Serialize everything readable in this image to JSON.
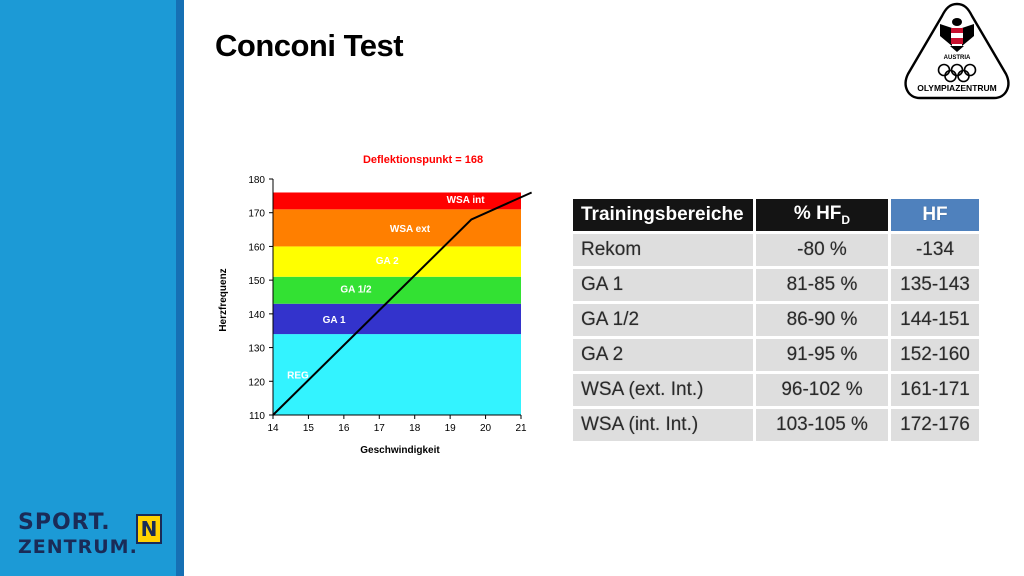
{
  "slide": {
    "title": "Conconi Test"
  },
  "logo": {
    "name": "OLYMPIAZENTRUM",
    "subtext": "AUSTRIA"
  },
  "brand": {
    "line1": "SPORT.",
    "line2": "ZENTRUM.",
    "badge": "N"
  },
  "colors": {
    "sidebar": "#1c9ad6",
    "sidebar_edge": "#1670b4",
    "brand_text": "#1a2b57",
    "table_hf_header": "#4f81bd",
    "table_header": "#141414",
    "table_cell": "#dedede"
  },
  "chart_data": {
    "type": "line",
    "title": "Deflektionspunkt = 168",
    "xlabel": "Geschwindigkeit",
    "ylabel": "Herzfrequenz",
    "xlim": [
      14,
      21
    ],
    "ylim": [
      110,
      180
    ],
    "xticks": [
      "14",
      "15",
      "16",
      "17",
      "18",
      "19",
      "20",
      "21"
    ],
    "yticks": [
      "110",
      "120",
      "130",
      "140",
      "150",
      "160",
      "170",
      "180"
    ],
    "zones": [
      {
        "label": "REG",
        "from": 110,
        "to": 134,
        "color": "#33f3ff"
      },
      {
        "label": "GA 1",
        "from": 134,
        "to": 143,
        "color": "#3333cc"
      },
      {
        "label": "GA 1/2",
        "from": 143,
        "to": 151,
        "color": "#33e133"
      },
      {
        "label": "GA 2",
        "from": 151,
        "to": 160,
        "color": "#ffff00"
      },
      {
        "label": "WSA ext",
        "from": 160,
        "to": 171,
        "color": "#ff7f00"
      },
      {
        "label": "WSA int",
        "from": 171,
        "to": 176,
        "color": "#ff0000"
      }
    ],
    "line": {
      "x": [
        14,
        19.6,
        21.3
      ],
      "y": [
        110,
        168,
        176
      ]
    }
  },
  "table": {
    "headers": {
      "name": "Trainingsbereiche",
      "pct": "% HF",
      "pct_sub": "D",
      "hf": "HF"
    },
    "rows": [
      {
        "name": "Rekom",
        "pct": "-80 %",
        "hf": "-134"
      },
      {
        "name": "GA 1",
        "pct": "81-85 %",
        "hf": "135-143"
      },
      {
        "name": "GA 1/2",
        "pct": "86-90 %",
        "hf": "144-151"
      },
      {
        "name": "GA 2",
        "pct": "91-95 %",
        "hf": "152-160"
      },
      {
        "name": "WSA (ext. Int.)",
        "pct": "96-102 %",
        "hf": "161-171"
      },
      {
        "name": "WSA (int. Int.)",
        "pct": "103-105 %",
        "hf": "172-176"
      }
    ]
  }
}
